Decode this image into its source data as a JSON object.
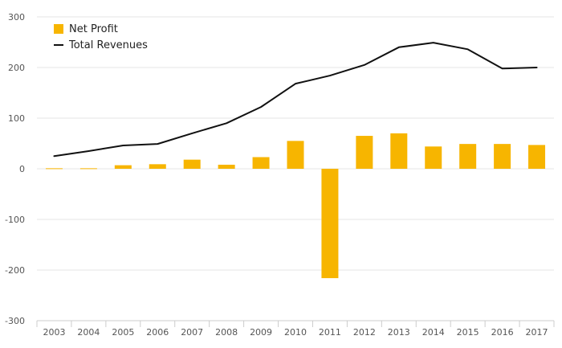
{
  "chart_data": {
    "type": "bar",
    "title": "",
    "xlabel": "",
    "ylabel": "",
    "categories": [
      "2003",
      "2004",
      "2005",
      "2006",
      "2007",
      "2008",
      "2009",
      "2010",
      "2011",
      "2012",
      "2013",
      "2014",
      "2015",
      "2016",
      "2017"
    ],
    "ylim": [
      -300,
      300
    ],
    "yticks": [
      300,
      200,
      100,
      0,
      -100,
      -200,
      -300
    ],
    "grid": true,
    "legend_position": "top-left",
    "series": [
      {
        "name": "Net Profit",
        "type": "bar",
        "color": "#f7b500",
        "values": [
          1,
          1,
          7,
          9,
          18,
          8,
          23,
          55,
          -216,
          65,
          70,
          44,
          49,
          49,
          47
        ]
      },
      {
        "name": "Total Revenues",
        "type": "line",
        "color": "#111111",
        "values": [
          25,
          35,
          46,
          49,
          70,
          90,
          122,
          168,
          184,
          205,
          240,
          249,
          236,
          198,
          200
        ]
      }
    ]
  }
}
